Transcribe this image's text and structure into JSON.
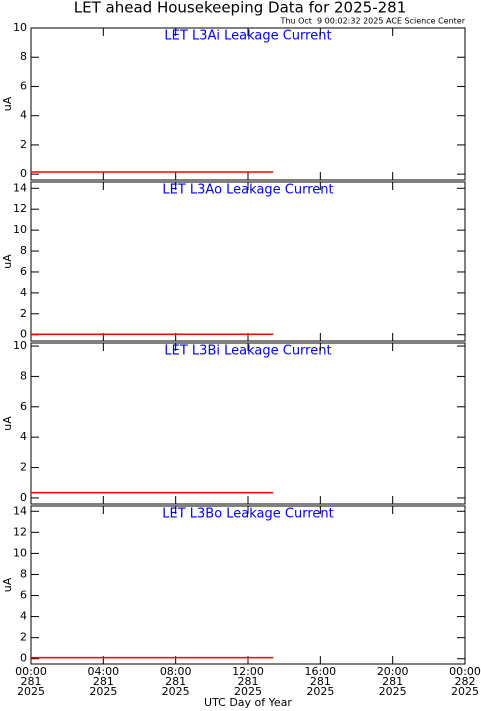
{
  "title": "LET ahead Housekeeping Data for 2025-281",
  "timestamp": "Thu Oct  9 00:02:32 2025 ACE Science Center",
  "x_axis": {
    "label": "UTC Day of Year",
    "xlim": [
      0,
      24
    ],
    "xticks": [
      {
        "value": 0,
        "label": "00:00"
      },
      {
        "value": 4,
        "label": "04:00"
      },
      {
        "value": 8,
        "label": "08:00"
      },
      {
        "value": 12,
        "label": "12:00"
      },
      {
        "value": 16,
        "label": "16:00"
      },
      {
        "value": 20,
        "label": "20:00"
      },
      {
        "value": 24,
        "label": "00:00"
      }
    ],
    "day_labels": [
      "281",
      "281",
      "281",
      "281",
      "281",
      "281",
      "282"
    ],
    "year_labels": [
      "2025",
      "2025",
      "2025",
      "2025",
      "2025",
      "2025",
      "2025"
    ]
  },
  "chart_data": [
    {
      "type": "line",
      "title": "LET L3Ai Leakage Current",
      "ylabel": "uA",
      "x": [
        0,
        13.4
      ],
      "series": [
        {
          "color": "#ff0000",
          "values": [
            0.15,
            0.15
          ]
        }
      ],
      "ylim": [
        -0.4,
        10
      ],
      "yticks": [
        0,
        2,
        4,
        6,
        8,
        10
      ]
    },
    {
      "type": "line",
      "title": "LET L3Ao Leakage Current",
      "ylabel": "uA",
      "x": [
        0,
        13.4
      ],
      "series": [
        {
          "color": "#ff0000",
          "values": [
            0.05,
            0.05
          ]
        }
      ],
      "ylim": [
        -0.6,
        14.6
      ],
      "yticks": [
        0,
        2,
        4,
        6,
        8,
        10,
        12,
        14
      ]
    },
    {
      "type": "line",
      "title": "LET L3Bi Leakage Current",
      "ylabel": "uA",
      "x": [
        0,
        13.4
      ],
      "series": [
        {
          "color": "#ff0000",
          "values": [
            0.35,
            0.35
          ]
        }
      ],
      "ylim": [
        -0.4,
        10.2
      ],
      "yticks": [
        0,
        2,
        4,
        6,
        8,
        10
      ]
    },
    {
      "type": "line",
      "title": "LET L3Bo Leakage Current",
      "ylabel": "uA",
      "x": [
        0,
        13.4
      ],
      "series": [
        {
          "color": "#ff0000",
          "values": [
            0.1,
            0.1
          ]
        }
      ],
      "ylim": [
        -0.5,
        14.5
      ],
      "yticks": [
        0,
        2,
        4,
        6,
        8,
        10,
        12,
        14
      ]
    }
  ]
}
